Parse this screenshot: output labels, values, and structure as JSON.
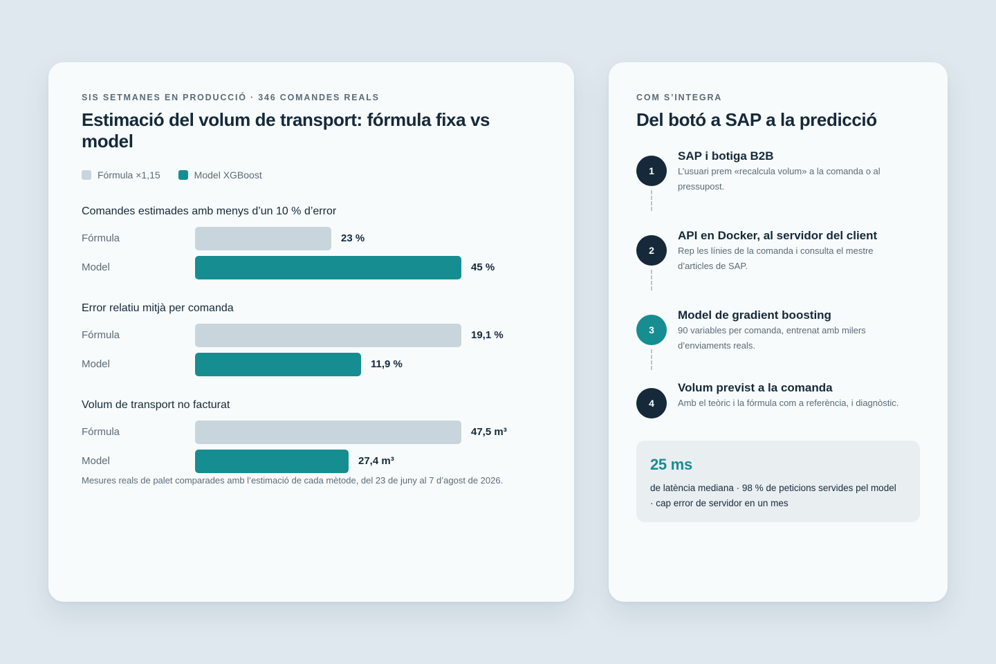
{
  "left_card": {
    "eyebrow": "SIS SETMANES EN PRODUCCIÓ · 346 COMANDES REALS",
    "title": "Estimació del volum de transport: fórmula fixa vs model",
    "legend": {
      "formula": "Fórmula ×1,15",
      "model": "Model XGBoost"
    },
    "footnote": "Mesures reals de palet comparades amb l’estimació de cada mètode, del 23 de juny al 7 d’agost de 2026."
  },
  "chart_data": {
    "type": "bar",
    "orientation": "horizontal",
    "series_names": [
      "Fórmula ×1,15",
      "Model XGBoost"
    ],
    "colors": {
      "formula": "#c9d5dd",
      "model": "#168d91"
    },
    "metrics": [
      {
        "title": "Comandes estimades amb menys d’un 10 % d’error",
        "rows": [
          {
            "label": "Fórmula",
            "value": 23,
            "display": "23 %",
            "scale_max": 45
          },
          {
            "label": "Model",
            "value": 45,
            "display": "45 %",
            "scale_max": 45
          }
        ]
      },
      {
        "title": "Error relatiu mitjà per comanda",
        "rows": [
          {
            "label": "Fórmula",
            "value": 19.1,
            "display": "19,1 %",
            "scale_max": 19.1
          },
          {
            "label": "Model",
            "value": 11.9,
            "display": "11,9 %",
            "scale_max": 19.1
          }
        ]
      },
      {
        "title": "Volum de transport no facturat",
        "rows": [
          {
            "label": "Fórmula",
            "value": 47.5,
            "display": "47,5 m³",
            "scale_max": 47.5
          },
          {
            "label": "Model",
            "value": 27.4,
            "display": "27,4 m³",
            "scale_max": 47.5
          }
        ]
      }
    ]
  },
  "right_card": {
    "eyebrow": "COM S’INTEGRA",
    "title": "Del botó a SAP a la predicció",
    "steps": [
      {
        "number": "1",
        "title": "SAP i botiga B2B",
        "desc_line1": "L’usuari prem «recalcula volum» a la comanda o al",
        "desc_line2": "pressupost."
      },
      {
        "number": "2",
        "title": "API en Docker, al servidor del client",
        "desc_line1": "Rep les línies de la comanda i consulta el mestre",
        "desc_line2": "d’articles de SAP."
      },
      {
        "number": "3",
        "title": "Model de gradient boosting",
        "desc_line1": "90 variables per comanda, entrenat amb milers",
        "desc_line2": "d’enviaments reals."
      },
      {
        "number": "4",
        "title": "Volum previst a la comanda",
        "desc_line1": "Amb el teòric i la fórmula com a referència, i diagnòstic.",
        "desc_line2": ""
      }
    ],
    "stat": {
      "value": "25 ms",
      "desc_line1": "de latència mediana · 98 % de peticions servides pel model",
      "desc_line2": "· cap error de servidor en un mes"
    }
  }
}
